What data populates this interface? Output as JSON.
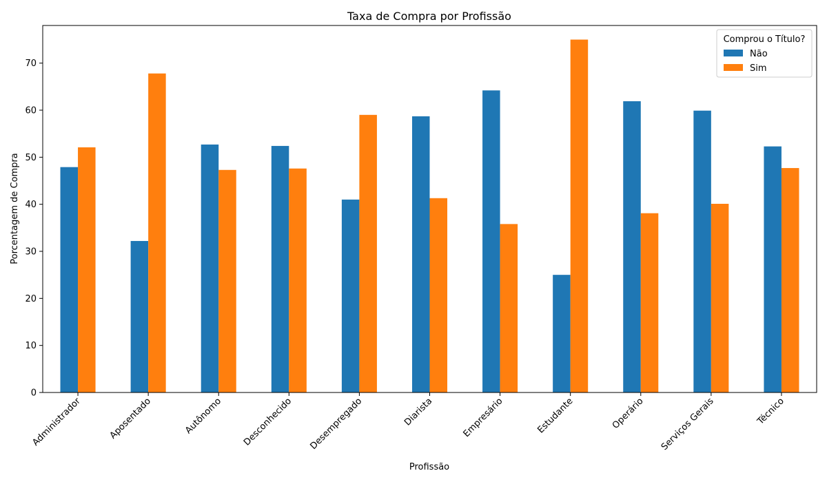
{
  "chart_data": {
    "type": "bar",
    "title": "Taxa de Compra por Profissão",
    "xlabel": "Profissão",
    "ylabel": "Porcentagem de Compra",
    "ylim": [
      0,
      78
    ],
    "yticks": [
      0,
      10,
      20,
      30,
      40,
      50,
      60,
      70
    ],
    "grid": false,
    "legend": {
      "title": "Comprou o Título?",
      "placement": "top-right"
    },
    "categories": [
      "Administrador",
      "Aposentado",
      "Autônomo",
      "Desconhecido",
      "Desempregado",
      "Diarista",
      "Empresário",
      "Estudante",
      "Operário",
      "Serviços Gerais",
      "Técnico"
    ],
    "series": [
      {
        "name": "Não",
        "color": "#1f77b4",
        "values": [
          47.9,
          32.2,
          52.7,
          52.4,
          41.0,
          58.7,
          64.2,
          25.0,
          61.9,
          59.9,
          52.3
        ]
      },
      {
        "name": "Sim",
        "color": "#ff7f0e",
        "values": [
          52.1,
          67.8,
          47.3,
          47.6,
          59.0,
          41.3,
          35.8,
          75.0,
          38.1,
          40.1,
          47.7
        ]
      }
    ]
  }
}
